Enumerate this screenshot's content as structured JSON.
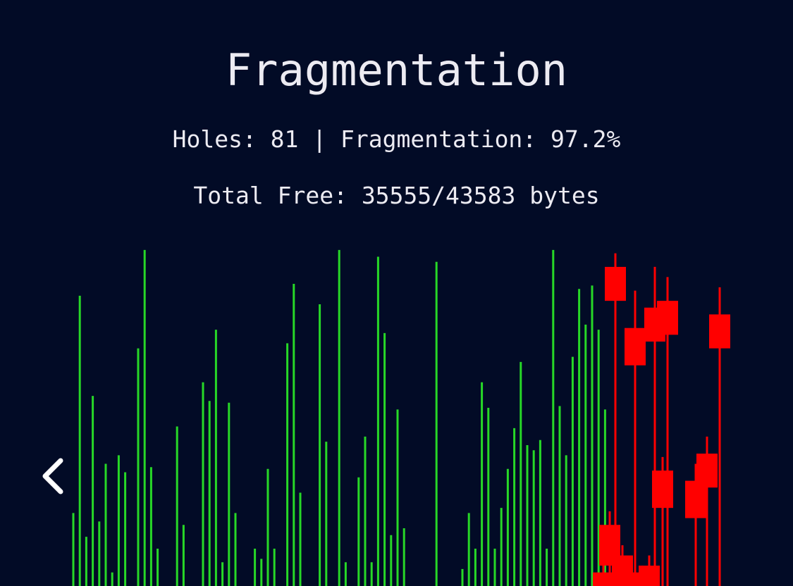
{
  "header": {
    "title": "Fragmentation",
    "stats_line": "Holes: 81 | Fragmentation: 97.2%",
    "free_line": "Total Free: 35555/43583 bytes"
  },
  "navigation": {
    "back_icon": "chevron-left-icon"
  },
  "colors": {
    "background": "#020b26",
    "text": "#ecebf2",
    "free_block": "#27d827",
    "allocated_block": "#ff0000"
  },
  "chart_data": {
    "type": "bar",
    "free_bar_heights": [
      0.215,
      0.855,
      0.145,
      0.56,
      0.19,
      0.36,
      0.04,
      0.385,
      0.335,
      0.0,
      0.7,
      0.99,
      0.35,
      0.11,
      0.0,
      0.0,
      0.47,
      0.18,
      0.0,
      0.0,
      0.6,
      0.545,
      0.755,
      0.07,
      0.54,
      0.215,
      0.0,
      0.0,
      0.11,
      0.08,
      0.345,
      0.11,
      0.0,
      0.715,
      0.89,
      0.275,
      0.0,
      0.0,
      0.83,
      0.425,
      0.0,
      0.99,
      0.07,
      0.0,
      0.32,
      0.44,
      0.07,
      0.97,
      0.745,
      0.15,
      0.52,
      0.17,
      0.0,
      0.0,
      0.0,
      0.0,
      0.955,
      0.0,
      0.0,
      0.0,
      0.05,
      0.215,
      0.11,
      0.6,
      0.525,
      0.11,
      0.23,
      0.345,
      0.465,
      0.66,
      0.415,
      0.4,
      0.43,
      0.11,
      0.99,
      0.53,
      0.385,
      0.675,
      0.875,
      0.77,
      0.885,
      0.755,
      0.52
    ],
    "allocated_candles": [
      {
        "high": 0.98,
        "box_top": 0.94,
        "box_bottom": 0.84,
        "low": 0.0
      },
      {
        "high": 0.87,
        "box_top": 0.76,
        "box_bottom": 0.65,
        "low": 0.0
      },
      {
        "high": 0.94,
        "box_top": 0.82,
        "box_bottom": 0.72,
        "low": 0.0
      },
      {
        "high": 0.88,
        "box_top": 0.8,
        "box_bottom": 0.7,
        "low": 0.0
      },
      {
        "high": 0.91,
        "box_top": 0.84,
        "box_bottom": 0.74,
        "low": 0.0
      },
      {
        "high": 0.38,
        "box_top": 0.34,
        "box_bottom": 0.23,
        "low": 0.0
      },
      {
        "high": 0.44,
        "box_top": 0.39,
        "box_bottom": 0.29,
        "low": 0.0
      },
      {
        "high": 0.36,
        "box_top": 0.31,
        "box_bottom": 0.2,
        "low": 0.0
      },
      {
        "high": 0.22,
        "box_top": 0.18,
        "box_bottom": 0.06,
        "low": 0.0
      },
      {
        "high": 0.12,
        "box_top": 0.09,
        "box_bottom": 0.0,
        "low": 0.0
      },
      {
        "high": 0.06,
        "box_top": 0.04,
        "box_bottom": 0.0,
        "low": 0.0
      },
      {
        "high": 0.09,
        "box_top": 0.06,
        "box_bottom": 0.0,
        "low": 0.0
      },
      {
        "high": 0.07,
        "box_top": 0.04,
        "box_bottom": 0.0,
        "low": 0.0
      }
    ]
  }
}
